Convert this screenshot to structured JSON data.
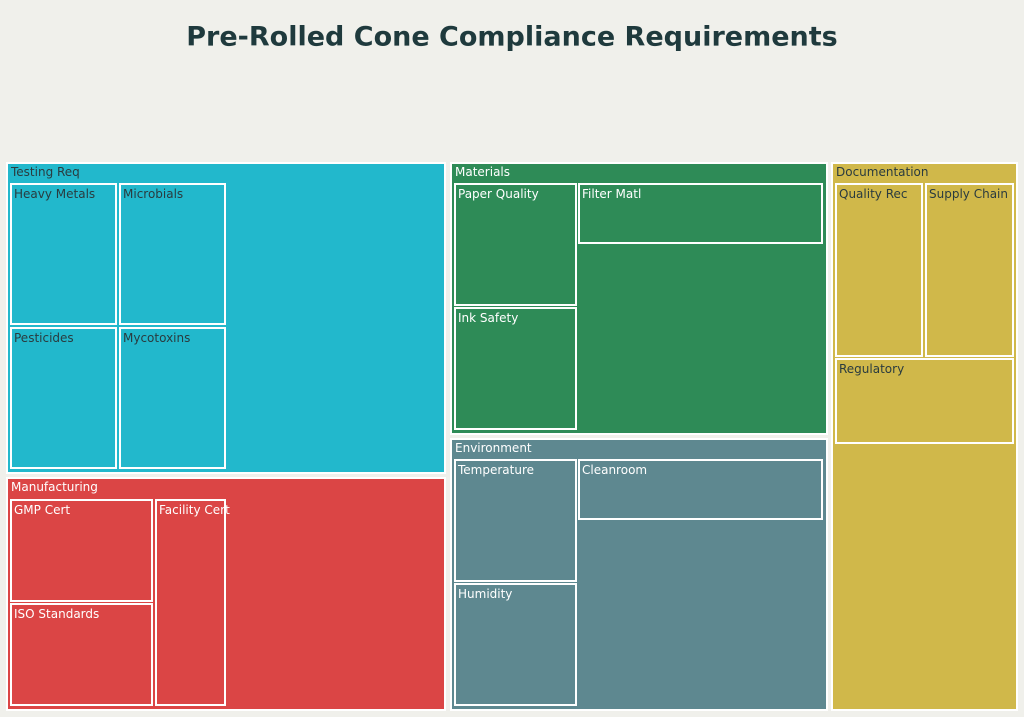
{
  "chart_data": {
    "type": "treemap",
    "title": "Pre-Rolled Cone Compliance Requirements",
    "groups": [
      {
        "name": "Testing Req",
        "color": "#22b8cc",
        "text_color": "#2a3b3f",
        "children": [
          "Heavy Metals",
          "Microbials",
          "Pesticides",
          "Mycotoxins"
        ]
      },
      {
        "name": "Manufacturing",
        "color": "#db4545",
        "text_color": "#ffffff",
        "children": [
          "GMP Cert",
          "ISO Standards",
          "Facility Cert"
        ]
      },
      {
        "name": "Materials",
        "color": "#2e8b57",
        "text_color": "#ffffff",
        "children": [
          "Paper Quality",
          "Filter Matl",
          "Ink Safety"
        ]
      },
      {
        "name": "Environment",
        "color": "#5e8890",
        "text_color": "#ffffff",
        "children": [
          "Temperature",
          "Cleanroom",
          "Humidity"
        ]
      },
      {
        "name": "Documentation",
        "color": "#d0b84a",
        "text_color": "#2a3b3f",
        "children": [
          "Quality Rec",
          "Supply Chain",
          "Regulatory"
        ]
      }
    ]
  }
}
